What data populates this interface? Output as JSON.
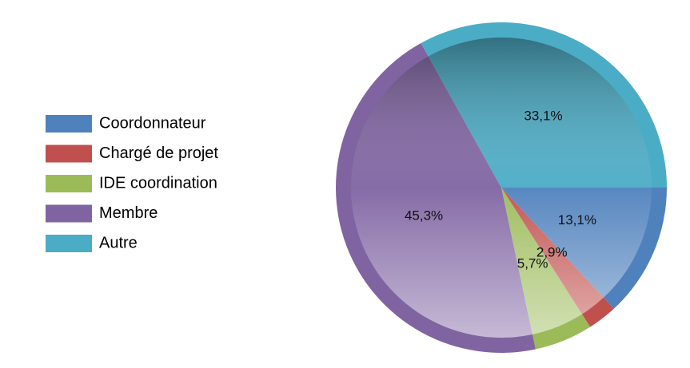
{
  "chart_data": {
    "type": "pie",
    "categories": [
      "Coordonnateur",
      "Chargé de projet",
      "IDE coordination",
      "Membre",
      "Autre"
    ],
    "values": [
      13.1,
      2.9,
      5.7,
      45.3,
      33.1
    ],
    "value_labels": [
      "13,1%",
      "2,9%",
      "5,7%",
      "45,3%",
      "33,1%"
    ],
    "colors": [
      "#4f81bd",
      "#c0504d",
      "#9bbb59",
      "#8064a2",
      "#4bacc6"
    ],
    "legend": "left"
  }
}
